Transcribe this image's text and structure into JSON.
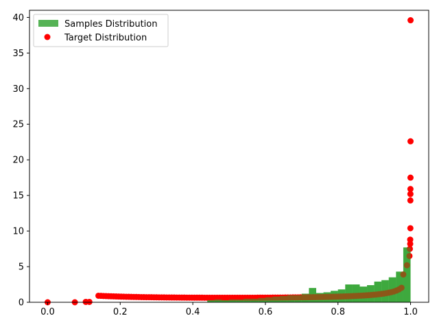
{
  "chart_data": {
    "type": "histogram-scatter",
    "title": "",
    "xlabel": "",
    "ylabel": "",
    "xlim": [
      -0.05,
      1.05
    ],
    "ylim": [
      0,
      41
    ],
    "grid": false,
    "legend_placement": "top-left",
    "x_ticks": [
      0.0,
      0.2,
      0.4,
      0.6,
      0.8,
      1.0
    ],
    "x_tick_labels": [
      "0.0",
      "0.2",
      "0.4",
      "0.6",
      "0.8",
      "1.0"
    ],
    "y_ticks": [
      0,
      5,
      10,
      15,
      20,
      25,
      30,
      35,
      40
    ],
    "y_tick_labels": [
      "0",
      "5",
      "10",
      "15",
      "20",
      "25",
      "30",
      "35",
      "40"
    ],
    "series": [
      {
        "name": "Samples Distribution",
        "kind": "histogram",
        "color": "#2ca02c",
        "bin_width": 0.02,
        "bin_starts": [
          0.44,
          0.46,
          0.48,
          0.5,
          0.52,
          0.54,
          0.56,
          0.58,
          0.6,
          0.62,
          0.64,
          0.66,
          0.68,
          0.7,
          0.72,
          0.74,
          0.76,
          0.78,
          0.8,
          0.82,
          0.84,
          0.86,
          0.88,
          0.9,
          0.92,
          0.94,
          0.96,
          0.98
        ],
        "values": [
          0.3,
          0.4,
          0.3,
          0.4,
          0.4,
          0.5,
          0.5,
          0.6,
          0.7,
          0.8,
          0.9,
          1.0,
          1.0,
          1.2,
          2.0,
          1.3,
          1.4,
          1.6,
          1.8,
          2.5,
          2.5,
          2.2,
          2.4,
          2.9,
          3.1,
          3.5,
          4.3,
          7.7
        ]
      },
      {
        "name": "Target Distribution",
        "kind": "scatter",
        "color": "#ff0000",
        "points": [
          [
            0.0,
            0.0
          ],
          [
            0.075,
            0.0
          ],
          [
            0.105,
            0.05
          ],
          [
            0.115,
            0.05
          ],
          [
            0.98,
            3.9
          ],
          [
            0.99,
            5.2
          ],
          [
            0.997,
            6.5
          ],
          [
            0.998,
            7.5
          ],
          [
            0.999,
            8.2
          ],
          [
            0.999,
            8.8
          ],
          [
            0.9995,
            10.4
          ],
          [
            0.9995,
            14.3
          ],
          [
            0.9996,
            15.2
          ],
          [
            0.9997,
            15.9
          ],
          [
            0.9998,
            17.5
          ],
          [
            0.9999,
            22.6
          ],
          [
            1.0,
            39.6
          ]
        ],
        "curve": {
          "x_start": 0.14,
          "x_end": 0.975,
          "point_count": 120
        }
      }
    ]
  }
}
